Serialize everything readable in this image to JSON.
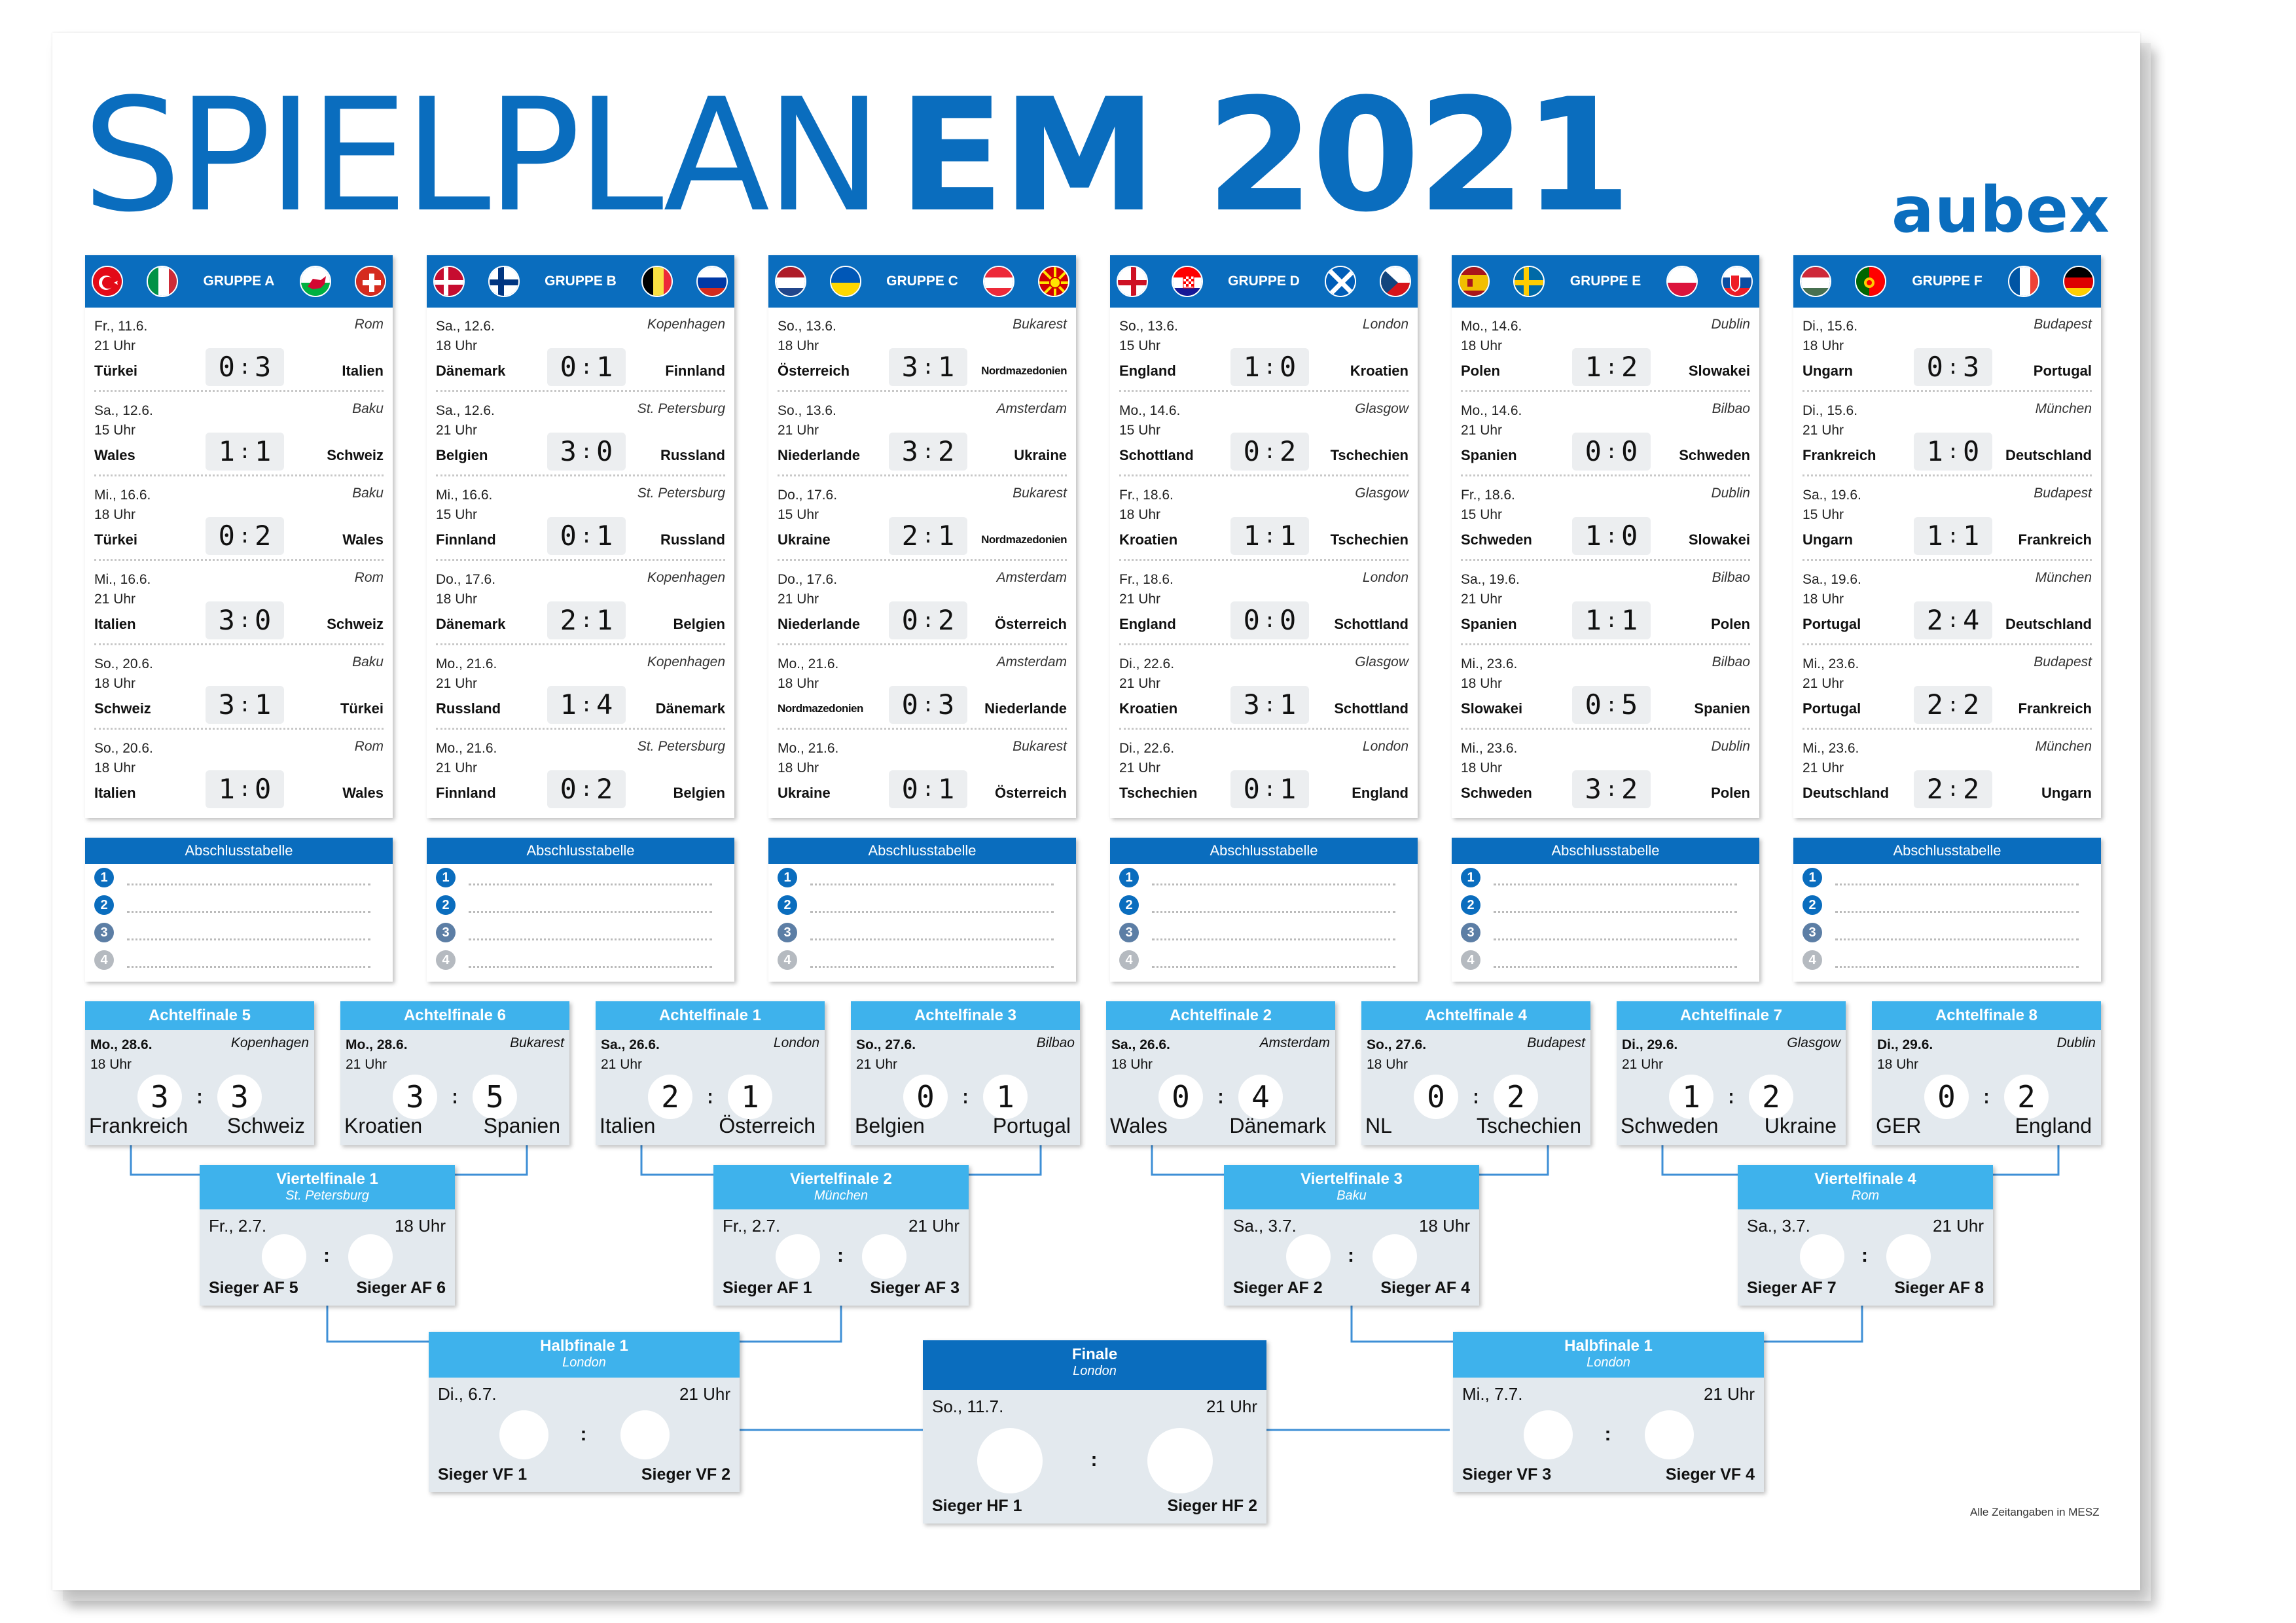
{
  "title": {
    "light": "SPIELPLAN",
    "bold": "EM 2021"
  },
  "brand": "aubex",
  "colors": {
    "primary": "#0a6dbe",
    "accent": "#3eb2ec",
    "panel": "#e3e9ee"
  },
  "groups": [
    {
      "name": "GRUPPE A",
      "flags": [
        "turkey-flag-icon",
        "italy-flag-icon",
        "wales-flag-icon",
        "switzerland-flag-icon"
      ],
      "matches": [
        {
          "date": "Fr., 11.6.",
          "time": "21 Uhr",
          "venue": "Rom",
          "home": "Türkei",
          "away": "Italien",
          "h": "0",
          "a": "3"
        },
        {
          "date": "Sa., 12.6.",
          "time": "15 Uhr",
          "venue": "Baku",
          "home": "Wales",
          "away": "Schweiz",
          "h": "1",
          "a": "1"
        },
        {
          "date": "Mi., 16.6.",
          "time": "18 Uhr",
          "venue": "Baku",
          "home": "Türkei",
          "away": "Wales",
          "h": "0",
          "a": "2"
        },
        {
          "date": "Mi., 16.6.",
          "time": "21 Uhr",
          "venue": "Rom",
          "home": "Italien",
          "away": "Schweiz",
          "h": "3",
          "a": "0"
        },
        {
          "date": "So., 20.6.",
          "time": "18 Uhr",
          "venue": "Baku",
          "home": "Schweiz",
          "away": "Türkei",
          "h": "3",
          "a": "1"
        },
        {
          "date": "So., 20.6.",
          "time": "18 Uhr",
          "venue": "Rom",
          "home": "Italien",
          "away": "Wales",
          "h": "1",
          "a": "0"
        }
      ]
    },
    {
      "name": "GRUPPE B",
      "flags": [
        "denmark-flag-icon",
        "finland-flag-icon",
        "belgium-flag-icon",
        "russia-flag-icon"
      ],
      "matches": [
        {
          "date": "Sa., 12.6.",
          "time": "18 Uhr",
          "venue": "Kopenhagen",
          "home": "Dänemark",
          "away": "Finnland",
          "h": "0",
          "a": "1"
        },
        {
          "date": "Sa., 12.6.",
          "time": "21 Uhr",
          "venue": "St. Petersburg",
          "home": "Belgien",
          "away": "Russland",
          "h": "3",
          "a": "0"
        },
        {
          "date": "Mi., 16.6.",
          "time": "15 Uhr",
          "venue": "St. Petersburg",
          "home": "Finnland",
          "away": "Russland",
          "h": "0",
          "a": "1"
        },
        {
          "date": "Do., 17.6.",
          "time": "18 Uhr",
          "venue": "Kopenhagen",
          "home": "Dänemark",
          "away": "Belgien",
          "h": "2",
          "a": "1"
        },
        {
          "date": "Mo., 21.6.",
          "time": "21 Uhr",
          "venue": "Kopenhagen",
          "home": "Russland",
          "away": "Dänemark",
          "h": "1",
          "a": "4"
        },
        {
          "date": "Mo., 21.6.",
          "time": "21 Uhr",
          "venue": "St. Petersburg",
          "home": "Finnland",
          "away": "Belgien",
          "h": "0",
          "a": "2"
        }
      ]
    },
    {
      "name": "GRUPPE C",
      "flags": [
        "netherlands-flag-icon",
        "ukraine-flag-icon",
        "austria-flag-icon",
        "north-macedonia-flag-icon"
      ],
      "matches": [
        {
          "date": "So., 13.6.",
          "time": "18 Uhr",
          "venue": "Bukarest",
          "home": "Österreich",
          "away": "Nordmazedonien",
          "h": "3",
          "a": "1"
        },
        {
          "date": "So., 13.6.",
          "time": "21 Uhr",
          "venue": "Amsterdam",
          "home": "Niederlande",
          "away": "Ukraine",
          "h": "3",
          "a": "2"
        },
        {
          "date": "Do., 17.6.",
          "time": "15 Uhr",
          "venue": "Bukarest",
          "home": "Ukraine",
          "away": "Nordmazedonien",
          "h": "2",
          "a": "1"
        },
        {
          "date": "Do., 17.6.",
          "time": "21 Uhr",
          "venue": "Amsterdam",
          "home": "Niederlande",
          "away": "Österreich",
          "h": "0",
          "a": "2"
        },
        {
          "date": "Mo., 21.6.",
          "time": "18 Uhr",
          "venue": "Amsterdam",
          "home": "Nordmazedonien",
          "away": "Niederlande",
          "h": "0",
          "a": "3"
        },
        {
          "date": "Mo., 21.6.",
          "time": "18 Uhr",
          "venue": "Bukarest",
          "home": "Ukraine",
          "away": "Österreich",
          "h": "0",
          "a": "1"
        }
      ]
    },
    {
      "name": "GRUPPE D",
      "flags": [
        "england-flag-icon",
        "croatia-flag-icon",
        "scotland-flag-icon",
        "czech-flag-icon"
      ],
      "matches": [
        {
          "date": "So., 13.6.",
          "time": "15 Uhr",
          "venue": "London",
          "home": "England",
          "away": "Kroatien",
          "h": "1",
          "a": "0"
        },
        {
          "date": "Mo., 14.6.",
          "time": "15 Uhr",
          "venue": "Glasgow",
          "home": "Schottland",
          "away": "Tschechien",
          "h": "0",
          "a": "2"
        },
        {
          "date": "Fr., 18.6.",
          "time": "18 Uhr",
          "venue": "Glasgow",
          "home": "Kroatien",
          "away": "Tschechien",
          "h": "1",
          "a": "1"
        },
        {
          "date": "Fr., 18.6.",
          "time": "21 Uhr",
          "venue": "London",
          "home": "England",
          "away": "Schottland",
          "h": "0",
          "a": "0"
        },
        {
          "date": "Di., 22.6.",
          "time": "21 Uhr",
          "venue": "Glasgow",
          "home": "Kroatien",
          "away": "Schottland",
          "h": "3",
          "a": "1"
        },
        {
          "date": "Di., 22.6.",
          "time": "21 Uhr",
          "venue": "London",
          "home": "Tschechien",
          "away": "England",
          "h": "0",
          "a": "1"
        }
      ]
    },
    {
      "name": "GRUPPE E",
      "flags": [
        "spain-flag-icon",
        "sweden-flag-icon",
        "poland-flag-icon",
        "slovakia-flag-icon"
      ],
      "matches": [
        {
          "date": "Mo., 14.6.",
          "time": "18 Uhr",
          "venue": "Dublin",
          "home": "Polen",
          "away": "Slowakei",
          "h": "1",
          "a": "2"
        },
        {
          "date": "Mo., 14.6.",
          "time": "21 Uhr",
          "venue": "Bilbao",
          "home": "Spanien",
          "away": "Schweden",
          "h": "0",
          "a": "0"
        },
        {
          "date": "Fr., 18.6.",
          "time": "15 Uhr",
          "venue": "Dublin",
          "home": "Schweden",
          "away": "Slowakei",
          "h": "1",
          "a": "0"
        },
        {
          "date": "Sa., 19.6.",
          "time": "21 Uhr",
          "venue": "Bilbao",
          "home": "Spanien",
          "away": "Polen",
          "h": "1",
          "a": "1"
        },
        {
          "date": "Mi., 23.6.",
          "time": "18 Uhr",
          "venue": "Bilbao",
          "home": "Slowakei",
          "away": "Spanien",
          "h": "0",
          "a": "5"
        },
        {
          "date": "Mi., 23.6.",
          "time": "18 Uhr",
          "venue": "Dublin",
          "home": "Schweden",
          "away": "Polen",
          "h": "3",
          "a": "2"
        }
      ]
    },
    {
      "name": "GRUPPE F",
      "flags": [
        "hungary-flag-icon",
        "portugal-flag-icon",
        "france-flag-icon",
        "germany-flag-icon"
      ],
      "matches": [
        {
          "date": "Di., 15.6.",
          "time": "18 Uhr",
          "venue": "Budapest",
          "home": "Ungarn",
          "away": "Portugal",
          "h": "0",
          "a": "3"
        },
        {
          "date": "Di., 15.6.",
          "time": "21 Uhr",
          "venue": "München",
          "home": "Frankreich",
          "away": "Deutschland",
          "h": "1",
          "a": "0"
        },
        {
          "date": "Sa., 19.6.",
          "time": "15 Uhr",
          "venue": "Budapest",
          "home": "Ungarn",
          "away": "Frankreich",
          "h": "1",
          "a": "1"
        },
        {
          "date": "Sa., 19.6.",
          "time": "18 Uhr",
          "venue": "München",
          "home": "Portugal",
          "away": "Deutschland",
          "h": "2",
          "a": "4"
        },
        {
          "date": "Mi., 23.6.",
          "time": "21 Uhr",
          "venue": "Budapest",
          "home": "Portugal",
          "away": "Frankreich",
          "h": "2",
          "a": "2"
        },
        {
          "date": "Mi., 23.6.",
          "time": "21 Uhr",
          "venue": "München",
          "home": "Deutschland",
          "away": "Ungarn",
          "h": "2",
          "a": "2"
        }
      ]
    }
  ],
  "table_title": "Abschlusstabelle",
  "table_ranks": [
    "1",
    "2",
    "3",
    "4"
  ],
  "round_of_16": [
    {
      "title": "Achtelfinale 5",
      "date": "Mo., 28.6.",
      "time": "18 Uhr",
      "venue": "Kopenhagen",
      "home": "Frankreich",
      "away": "Schweiz",
      "h": "3",
      "a": "3"
    },
    {
      "title": "Achtelfinale 6",
      "date": "Mo., 28.6.",
      "time": "21 Uhr",
      "venue": "Bukarest",
      "home": "Kroatien",
      "away": "Spanien",
      "h": "3",
      "a": "5"
    },
    {
      "title": "Achtelfinale 1",
      "date": "Sa., 26.6.",
      "time": "21 Uhr",
      "venue": "London",
      "home": "Italien",
      "away": "Österreich",
      "h": "2",
      "a": "1"
    },
    {
      "title": "Achtelfinale 3",
      "date": "So., 27.6.",
      "time": "21 Uhr",
      "venue": "Bilbao",
      "home": "Belgien",
      "away": "Portugal",
      "h": "0",
      "a": "1"
    },
    {
      "title": "Achtelfinale 2",
      "date": "Sa., 26.6.",
      "time": "18 Uhr",
      "venue": "Amsterdam",
      "home": "Wales",
      "away": "Dänemark",
      "h": "0",
      "a": "4"
    },
    {
      "title": "Achtelfinale 4",
      "date": "So., 27.6.",
      "time": "18 Uhr",
      "venue": "Budapest",
      "home": "NL",
      "away": "Tschechien",
      "h": "0",
      "a": "2"
    },
    {
      "title": "Achtelfinale 7",
      "date": "Di., 29.6.",
      "time": "21 Uhr",
      "venue": "Glasgow",
      "home": "Schweden",
      "away": "Ukraine",
      "h": "1",
      "a": "2"
    },
    {
      "title": "Achtelfinale 8",
      "date": "Di., 29.6.",
      "time": "18 Uhr",
      "venue": "Dublin",
      "home": "GER",
      "away": "England",
      "h": "0",
      "a": "2"
    }
  ],
  "quarter_finals": [
    {
      "title": "Viertelfinale 1",
      "venue": "St. Petersburg",
      "date": "Fr., 2.7.",
      "time": "18 Uhr",
      "left": "Sieger AF 5",
      "right": "Sieger AF 6"
    },
    {
      "title": "Viertelfinale 2",
      "venue": "München",
      "date": "Fr., 2.7.",
      "time": "21 Uhr",
      "left": "Sieger AF 1",
      "right": "Sieger AF 3"
    },
    {
      "title": "Viertelfinale 3",
      "venue": "Baku",
      "date": "Sa., 3.7.",
      "time": "18 Uhr",
      "left": "Sieger AF 2",
      "right": "Sieger AF 4"
    },
    {
      "title": "Viertelfinale 4",
      "venue": "Rom",
      "date": "Sa., 3.7.",
      "time": "21 Uhr",
      "left": "Sieger AF 7",
      "right": "Sieger AF 8"
    }
  ],
  "semi_finals": [
    {
      "title": "Halbfinale 1",
      "venue": "London",
      "date": "Di., 6.7.",
      "time": "21 Uhr",
      "left": "Sieger VF 1",
      "right": "Sieger VF 2"
    },
    {
      "title": "Halbfinale 1",
      "venue": "London",
      "date": "Mi., 7.7.",
      "time": "21 Uhr",
      "left": "Sieger VF 3",
      "right": "Sieger VF 4"
    }
  ],
  "final": {
    "title": "Finale",
    "venue": "London",
    "date": "So., 11.7.",
    "time": "21 Uhr",
    "left": "Sieger HF 1",
    "right": "Sieger HF 2"
  },
  "footnote": "Alle Zeitangaben in MESZ"
}
